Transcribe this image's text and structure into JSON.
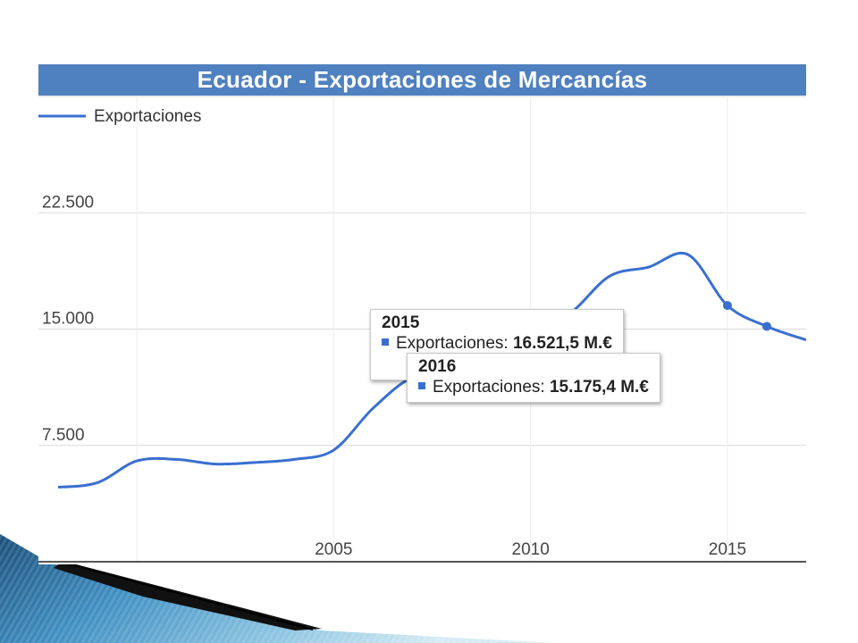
{
  "chart_data": {
    "type": "line",
    "title": "Ecuador - Exportaciones de Mercancías",
    "series": [
      {
        "name": "Exportaciones",
        "x": [
          1998,
          1999,
          2000,
          2001,
          2002,
          2003,
          2004,
          2005,
          2006,
          2007,
          2008,
          2009,
          2010,
          2011,
          2012,
          2013,
          2014,
          2015,
          2016,
          2017
        ],
        "values": [
          4800,
          5100,
          6500,
          6600,
          6300,
          6400,
          6600,
          7200,
          9900,
          11900,
          12200,
          14200,
          14800,
          16000,
          18400,
          19000,
          19800,
          16521.5,
          15175.4,
          14300
        ]
      }
    ],
    "x_ticks": [
      "2005",
      "2010",
      "2015"
    ],
    "y_ticks": [
      "7.500",
      "15.000",
      "22.500"
    ],
    "xlim": [
      1997.5,
      2017
    ],
    "ylim": [
      0,
      30000
    ],
    "grid": true,
    "legend": "top-left",
    "colors": {
      "line": "#3a6fcf",
      "title_bg": "#4f81c0",
      "title_text": "#ffffff"
    },
    "tooltips": [
      {
        "year": "2015",
        "label": "Exportaciones:",
        "value": "16.521,5 M.€",
        "x": 2015,
        "y": 16521.5
      },
      {
        "year": "2016",
        "label": "Exportaciones:",
        "value": "15.175,4 M.€",
        "x": 2016,
        "y": 15175.4
      }
    ]
  }
}
